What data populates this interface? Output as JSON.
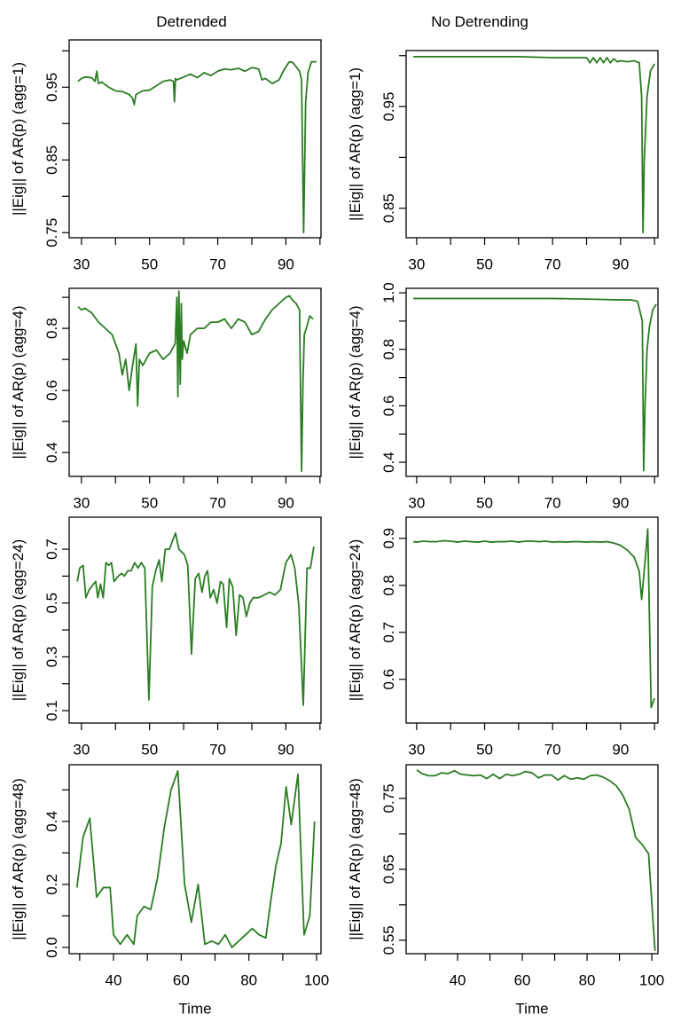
{
  "column_titles": [
    "Detrended",
    "No Detrending"
  ],
  "chart_data": [
    {
      "type": "line",
      "ylabel": "||Eig|| of AR(p) (agg=1)",
      "color": "#2a7d22",
      "x": [
        29,
        30,
        31,
        33,
        34,
        34.5,
        35,
        36,
        38,
        40,
        42,
        44,
        45,
        45.5,
        46,
        48,
        50,
        52,
        54,
        56,
        57,
        57.3,
        57.6,
        58,
        60,
        62,
        64,
        66,
        68,
        70,
        72,
        74,
        76,
        78,
        80,
        82,
        83,
        84,
        86,
        88,
        89,
        90,
        91,
        92,
        93,
        94,
        94.6,
        95.2,
        95.8,
        96.5,
        97.5,
        99
      ],
      "values": [
        0.958,
        0.962,
        0.964,
        0.963,
        0.958,
        0.972,
        0.955,
        0.957,
        0.95,
        0.945,
        0.944,
        0.94,
        0.935,
        0.926,
        0.94,
        0.945,
        0.946,
        0.952,
        0.958,
        0.96,
        0.958,
        0.93,
        0.962,
        0.96,
        0.964,
        0.968,
        0.963,
        0.97,
        0.966,
        0.972,
        0.975,
        0.974,
        0.976,
        0.972,
        0.977,
        0.975,
        0.96,
        0.962,
        0.955,
        0.96,
        0.97,
        0.978,
        0.985,
        0.984,
        0.978,
        0.972,
        0.96,
        0.75,
        0.93,
        0.97,
        0.985,
        0.985
      ],
      "xlim": [
        26.4,
        100.3
      ],
      "xticks": [
        30,
        50,
        70,
        90
      ],
      "xminorticks": [
        40,
        60,
        80,
        100
      ],
      "ylim": [
        0.743,
        1.015
      ],
      "yticks": [
        0.75,
        0.85,
        0.95
      ],
      "yminorticks": [
        0.8,
        0.9,
        {
          "value": 1,
          "label": "1.00"
        }
      ]
    },
    {
      "type": "line",
      "ylabel": "||Eig|| of AR(p) (agg=1)",
      "color": "#2a7d22",
      "x": [
        29,
        40,
        50,
        60,
        70,
        80,
        81,
        82,
        83,
        84,
        85,
        86,
        87,
        88,
        89,
        90,
        92,
        94,
        95.5,
        96.2,
        96.6,
        97,
        97.8,
        98.8,
        100
      ],
      "values": [
        0.999,
        0.999,
        0.999,
        0.999,
        0.998,
        0.998,
        0.993,
        0.998,
        0.993,
        0.998,
        0.993,
        0.998,
        0.993,
        0.997,
        0.994,
        0.995,
        0.994,
        0.995,
        0.993,
        0.96,
        0.826,
        0.9,
        0.96,
        0.985,
        0.992
      ],
      "xlim": [
        26.9,
        101.0
      ],
      "xticks": [
        30,
        50,
        70,
        90
      ],
      "xminorticks": [
        40,
        60,
        80,
        100
      ],
      "ylim": [
        0.821,
        1.005
      ],
      "yticks": [
        0.85,
        0.95
      ],
      "yminorticks": [
        0.9,
        {
          "value": 1,
          "label": "1.00"
        }
      ]
    },
    {
      "type": "line",
      "ylabel": "||Eig|| of AR(p) (agg=4)",
      "color": "#2a7d22",
      "x": [
        29,
        30,
        31,
        33,
        35,
        37,
        39,
        41,
        42,
        43,
        44,
        45,
        46,
        46.5,
        47,
        48,
        50,
        52,
        54,
        56,
        57.5,
        58,
        58.3,
        58.6,
        59,
        59.3,
        59.6,
        60,
        61,
        62,
        64,
        66,
        68,
        70,
        72,
        74,
        76,
        78,
        80,
        82,
        84,
        86,
        88,
        90,
        91,
        92,
        93,
        94,
        94.6,
        95,
        95.4,
        96,
        97,
        98
      ],
      "values": [
        0.87,
        0.86,
        0.865,
        0.85,
        0.82,
        0.8,
        0.78,
        0.72,
        0.65,
        0.7,
        0.6,
        0.68,
        0.75,
        0.55,
        0.7,
        0.68,
        0.72,
        0.73,
        0.7,
        0.72,
        0.75,
        0.9,
        0.58,
        0.92,
        0.62,
        0.88,
        0.7,
        0.76,
        0.72,
        0.78,
        0.8,
        0.8,
        0.82,
        0.82,
        0.83,
        0.8,
        0.83,
        0.82,
        0.78,
        0.79,
        0.83,
        0.86,
        0.88,
        0.9,
        0.905,
        0.89,
        0.88,
        0.86,
        0.34,
        0.62,
        0.78,
        0.8,
        0.84,
        0.83
      ],
      "xlim": [
        26.4,
        100.3
      ],
      "xticks": [
        30,
        50,
        70,
        90
      ],
      "xminorticks": [
        40,
        60,
        80,
        100
      ],
      "ylim": [
        0.323,
        0.929
      ],
      "yticks": [
        0.4,
        0.6,
        0.8
      ],
      "yminorticks": [
        0.5,
        0.7,
        0.9
      ]
    },
    {
      "type": "line",
      "ylabel": "||Eig|| of AR(p) (agg=4)",
      "color": "#2a7d22",
      "x": [
        29,
        40,
        50,
        60,
        70,
        80,
        90,
        93,
        95,
        96.4,
        96.8,
        97.2,
        97.8,
        98.5,
        99.5,
        100.5
      ],
      "values": [
        0.98,
        0.98,
        0.98,
        0.98,
        0.98,
        0.978,
        0.975,
        0.975,
        0.97,
        0.9,
        0.37,
        0.6,
        0.8,
        0.88,
        0.94,
        0.96
      ],
      "xlim": [
        26.9,
        101.0
      ],
      "xticks": [
        30,
        50,
        70,
        90
      ],
      "xminorticks": [
        40,
        60,
        80,
        100
      ],
      "ylim": [
        0.35,
        1.016
      ],
      "yticks": [
        0.4,
        0.6,
        0.8,
        {
          "value": 1,
          "label": "1.0"
        }
      ],
      "yminorticks": [
        0.5,
        0.7,
        0.9
      ]
    },
    {
      "type": "line",
      "ylabel": "||Eig|| of AR(p) (agg=24)",
      "color": "#2a7d22",
      "x": [
        28.8,
        29.5,
        30.5,
        31.3,
        32.3,
        33.5,
        34.2,
        34.8,
        35.6,
        36.4,
        37.2,
        38,
        38.8,
        39.6,
        40.8,
        41.8,
        42.6,
        43.6,
        44.6,
        45.6,
        46.6,
        47.6,
        48.6,
        49.8,
        50.8,
        51.8,
        52.8,
        53.6,
        54.6,
        55.8,
        57.6,
        58.6,
        60.2,
        61.2,
        62.3,
        63.4,
        64.4,
        65.4,
        66.2,
        67,
        67.8,
        68.8,
        69.8,
        70.8,
        71.6,
        72.6,
        73.4,
        74.4,
        75.4,
        76.4,
        77.4,
        78.4,
        79.4,
        80.4,
        82,
        83.6,
        85.2,
        86.8,
        88.4,
        90,
        91.5,
        92.6,
        93.8,
        95.1,
        96.2,
        97.2,
        98.2
      ],
      "values": [
        0.58,
        0.63,
        0.64,
        0.52,
        0.55,
        0.57,
        0.58,
        0.52,
        0.57,
        0.52,
        0.65,
        0.64,
        0.65,
        0.58,
        0.6,
        0.61,
        0.6,
        0.62,
        0.62,
        0.65,
        0.63,
        0.65,
        0.63,
        0.14,
        0.56,
        0.62,
        0.66,
        0.58,
        0.7,
        0.7,
        0.76,
        0.7,
        0.68,
        0.64,
        0.31,
        0.59,
        0.61,
        0.54,
        0.6,
        0.62,
        0.52,
        0.55,
        0.5,
        0.58,
        0.57,
        0.41,
        0.59,
        0.56,
        0.38,
        0.53,
        0.52,
        0.45,
        0.5,
        0.52,
        0.52,
        0.53,
        0.54,
        0.53,
        0.55,
        0.65,
        0.68,
        0.63,
        0.49,
        0.12,
        0.63,
        0.63,
        0.71
      ],
      "xlim": [
        26.4,
        100.3
      ],
      "xticks": [
        30,
        50,
        70,
        90
      ],
      "xminorticks": [
        40,
        60,
        80,
        100
      ],
      "ylim": [
        0.054,
        0.819
      ],
      "yticks": [
        0.1,
        0.3,
        0.5,
        0.7
      ],
      "yminorticks": [
        0.2,
        0.4,
        0.6
      ]
    },
    {
      "type": "line",
      "ylabel": "||Eig|| of AR(p) (agg=24)",
      "color": "#2a7d22",
      "x": [
        29,
        30,
        32,
        34,
        36,
        38,
        40,
        42,
        44,
        46,
        48,
        50,
        52,
        54,
        56,
        58,
        60,
        62,
        64,
        66,
        68,
        70,
        72,
        74,
        76,
        78,
        80,
        82,
        84,
        86,
        88,
        90,
        92,
        94,
        95.5,
        96.2,
        97.2,
        98,
        99,
        100
      ],
      "values": [
        0.893,
        0.892,
        0.894,
        0.893,
        0.893,
        0.895,
        0.894,
        0.892,
        0.894,
        0.893,
        0.892,
        0.894,
        0.892,
        0.893,
        0.893,
        0.894,
        0.892,
        0.894,
        0.894,
        0.893,
        0.894,
        0.892,
        0.893,
        0.892,
        0.893,
        0.893,
        0.892,
        0.893,
        0.892,
        0.893,
        0.89,
        0.885,
        0.875,
        0.86,
        0.83,
        0.77,
        0.85,
        0.92,
        0.54,
        0.56
      ],
      "xlim": [
        26.9,
        101.0
      ],
      "xticks": [
        30,
        50,
        70,
        90
      ],
      "xminorticks": [
        40,
        60,
        80,
        100
      ],
      "ylim": [
        0.507,
        0.945
      ],
      "yticks": [
        0.6,
        0.7,
        0.8,
        0.9
      ],
      "yminorticks": []
    },
    {
      "type": "line",
      "ylabel": "||Eig|| of AR(p) (agg=48)",
      "xlabel": "Time",
      "color": "#2a7d22",
      "x": [
        29.2,
        31,
        33,
        35,
        37,
        39,
        40,
        42,
        44,
        46,
        47,
        49,
        51,
        53,
        55,
        57,
        59,
        61,
        63,
        65,
        67,
        69,
        71,
        73,
        75,
        77,
        79,
        81,
        83,
        85,
        86.5,
        88,
        89.5,
        91,
        92.5,
        94.5,
        96.3,
        98,
        99.4
      ],
      "values": [
        0.19,
        0.35,
        0.41,
        0.16,
        0.19,
        0.19,
        0.04,
        0.01,
        0.04,
        0.01,
        0.1,
        0.13,
        0.12,
        0.22,
        0.38,
        0.5,
        0.56,
        0.2,
        0.08,
        0.2,
        0.01,
        0.02,
        0.01,
        0.04,
        0,
        0.02,
        0.04,
        0.06,
        0.04,
        0.03,
        0.15,
        0.26,
        0.33,
        0.51,
        0.39,
        0.55,
        0.04,
        0.1,
        0.4
      ],
      "xlim": [
        26.9,
        101.3
      ],
      "xticks": [
        40,
        60,
        80,
        100
      ],
      "xminorticks": [
        30,
        50,
        70,
        90
      ],
      "ylim": [
        -0.02,
        0.58
      ],
      "yticks": [
        {
          "value": 0,
          "label": "0.0"
        },
        0.2,
        0.4
      ],
      "yminorticks": [
        0.1,
        0.3,
        0.5
      ]
    },
    {
      "type": "line",
      "ylabel": "||Eig|| of AR(p) (agg=48)",
      "xlabel": "Time",
      "color": "#2a7d22",
      "x": [
        27.4,
        29,
        31,
        33,
        35,
        37,
        39,
        41,
        43,
        45,
        47,
        49,
        51,
        53,
        55,
        57,
        59,
        61,
        63,
        65,
        67,
        69,
        71,
        73,
        75,
        77,
        79,
        81,
        83,
        85,
        87,
        89,
        91,
        93,
        95,
        97,
        99,
        101
      ],
      "values": [
        0.79,
        0.785,
        0.782,
        0.782,
        0.786,
        0.785,
        0.789,
        0.784,
        0.783,
        0.782,
        0.783,
        0.778,
        0.784,
        0.778,
        0.784,
        0.782,
        0.784,
        0.788,
        0.786,
        0.779,
        0.783,
        0.783,
        0.776,
        0.782,
        0.777,
        0.779,
        0.777,
        0.782,
        0.783,
        0.78,
        0.775,
        0.768,
        0.755,
        0.735,
        0.695,
        0.685,
        0.672,
        0.535
      ],
      "xlim": [
        24.1,
        101.9
      ],
      "xticks": [
        40,
        60,
        80,
        100
      ],
      "xminorticks": [
        30,
        50,
        70,
        90
      ],
      "ylim": [
        0.531,
        0.7975
      ],
      "yticks": [
        0.55,
        0.65,
        0.75
      ],
      "yminorticks": [
        {
          "value": 0.6,
          "label": "0.60"
        },
        {
          "value": 0.7,
          "label": "0.70"
        }
      ]
    }
  ]
}
